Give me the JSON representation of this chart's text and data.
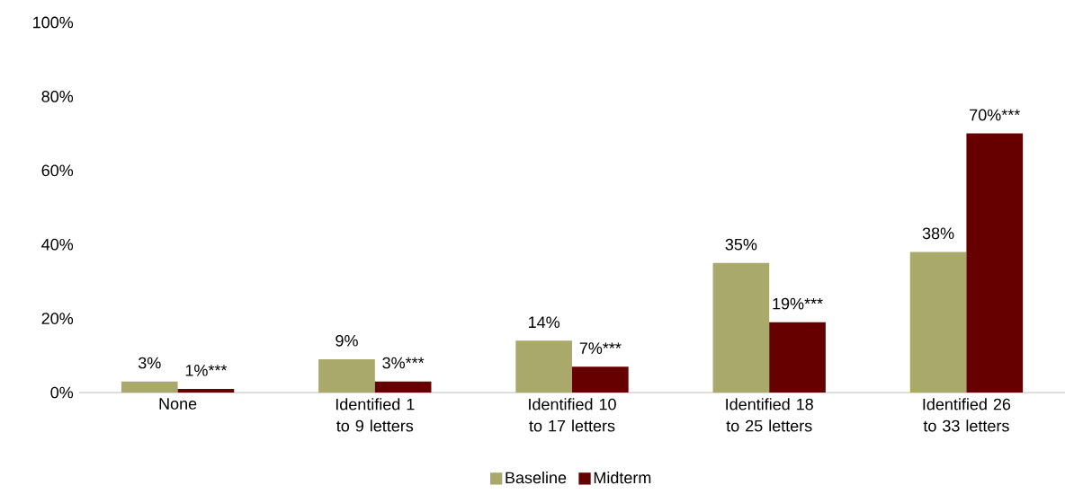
{
  "chart_data": {
    "type": "bar",
    "categories": [
      "None",
      "Identified 1 to 9 letters",
      "Identified 10 to 17 letters",
      "Identified 18 to 25 letters",
      "Identified 26 to 33 letters"
    ],
    "series": [
      {
        "name": "Baseline",
        "color": "#a9a96b",
        "values": [
          3,
          9,
          14,
          35,
          38
        ],
        "value_labels": [
          "3%",
          "9%",
          "14%",
          "35%",
          "38%"
        ]
      },
      {
        "name": "Midterm",
        "color": "#660000",
        "values": [
          1,
          3,
          7,
          19,
          70
        ],
        "value_labels": [
          "1%***",
          "3%***",
          "7%***",
          "19%***",
          "70%***"
        ]
      }
    ],
    "ylim": [
      0,
      100
    ],
    "yticks": [
      {
        "value": 0,
        "label": "0%"
      },
      {
        "value": 20,
        "label": "20%"
      },
      {
        "value": 40,
        "label": "40%"
      },
      {
        "value": 60,
        "label": "60%"
      },
      {
        "value": 80,
        "label": "80%"
      },
      {
        "value": 100,
        "label": "100%"
      }
    ],
    "legend": "bottom"
  }
}
